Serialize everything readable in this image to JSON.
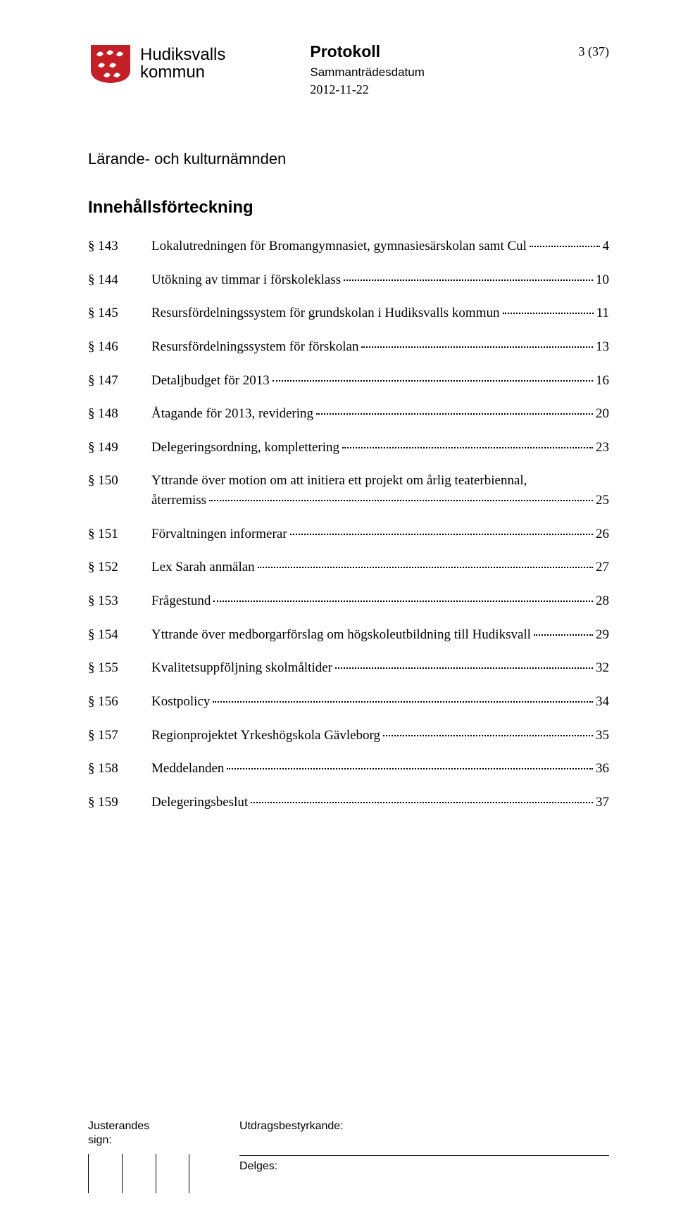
{
  "header": {
    "logo_line1": "Hudiksvalls",
    "logo_line2": "kommun",
    "protokoll_title": "Protokoll",
    "protokoll_sub": "Sammanträdesdatum",
    "protokoll_date": "2012-11-22",
    "page_number": "3 (37)"
  },
  "committee": "Lärande- och kulturnämnden",
  "toc_title": "Innehållsförteckning",
  "toc": [
    {
      "section": "§ 143",
      "label": "Lokalutredningen för Bromangymnasiet, gymnasiesärskolan samt Cul",
      "page": "4"
    },
    {
      "section": "§ 144",
      "label": "Utökning av timmar i förskoleklass",
      "page": "10"
    },
    {
      "section": "§ 145",
      "label": "Resursfördelningssystem för grundskolan i Hudiksvalls kommun",
      "page": "11"
    },
    {
      "section": "§ 146",
      "label": "Resursfördelningssystem för förskolan",
      "page": "13"
    },
    {
      "section": "§ 147",
      "label": "Detaljbudget för 2013",
      "page": "16"
    },
    {
      "section": "§ 148",
      "label": "Åtagande för 2013, revidering",
      "page": "20"
    },
    {
      "section": "§ 149",
      "label": "Delegeringsordning, komplettering",
      "page": "23"
    },
    {
      "section": "§ 150",
      "line1": "Yttrande över motion om att initiera ett projekt om årlig teaterbiennal,",
      "label": "återremiss",
      "page": "25",
      "multiline": true
    },
    {
      "section": "§ 151",
      "label": "Förvaltningen informerar",
      "page": "26"
    },
    {
      "section": "§ 152",
      "label": "Lex Sarah anmälan",
      "page": "27"
    },
    {
      "section": "§ 153",
      "label": "Frågestund",
      "page": "28"
    },
    {
      "section": "§ 154",
      "label": "Yttrande över medborgarförslag om högskoleutbildning till Hudiksvall",
      "page": "29"
    },
    {
      "section": "§ 155",
      "label": "Kvalitetsuppföljning skolmåltider",
      "page": "32"
    },
    {
      "section": "§ 156",
      "label": "Kostpolicy",
      "page": "34"
    },
    {
      "section": "§ 157",
      "label": "Regionprojektet Yrkeshögskola Gävleborg",
      "page": "35"
    },
    {
      "section": "§ 158",
      "label": "Meddelanden",
      "page": "36"
    },
    {
      "section": "§ 159",
      "label": "Delegeringsbeslut",
      "page": "37"
    }
  ],
  "footer": {
    "justerandes": "Justerandes",
    "sign": "sign:",
    "utdrag": "Utdragsbestyrkande:",
    "delges": "Delges:"
  },
  "colors": {
    "logo_red": "#c41e26",
    "text": "#000000",
    "bg": "#ffffff"
  }
}
